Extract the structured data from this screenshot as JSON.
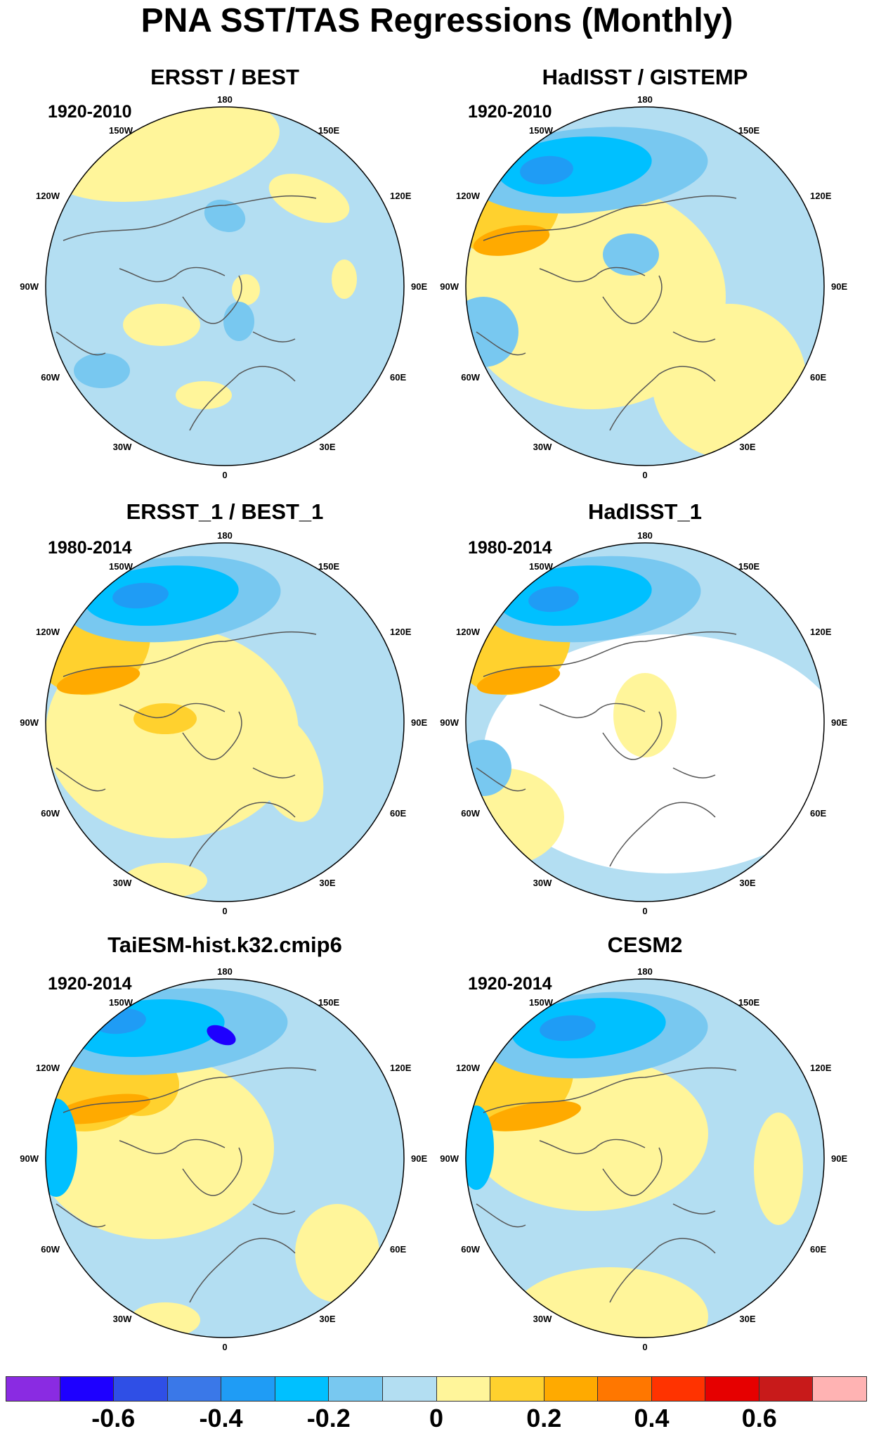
{
  "title": "PNA SST/TAS Regressions (Monthly)",
  "lon_labels": {
    "top": "180",
    "bottom": "0",
    "left_upper": "150W",
    "right_upper": "150E",
    "left_mid_upper": "120W",
    "right_mid_upper": "120E",
    "left_mid": "90W",
    "right_mid": "90E",
    "left_mid_lower": "60W",
    "right_mid_lower": "60E",
    "left_lower": "30W",
    "right_lower": "30E"
  },
  "panels": [
    {
      "title": "ERSST / BEST",
      "years": "1920-2010"
    },
    {
      "title": "HadISST / GISTEMP",
      "years": "1920-2010"
    },
    {
      "title": "ERSST_1 / BEST_1",
      "years": "1980-2014"
    },
    {
      "title": "HadISST_1",
      "years": "1980-2014"
    },
    {
      "title": "TaiESM-hist.k32.cmip6",
      "years": "1920-2014"
    },
    {
      "title": "CESM2",
      "years": "1920-2014"
    }
  ],
  "colorbar": {
    "colors": [
      "#8a2be2",
      "#1e00ff",
      "#2f4fe6",
      "#3a78e8",
      "#1f9cf5",
      "#00c0ff",
      "#78c8f0",
      "#b3def2",
      "#fff59a",
      "#ffd12e",
      "#ffaa00",
      "#ff7700",
      "#ff3300",
      "#e60000",
      "#c81a1a",
      "#ffb3b3"
    ],
    "labels": [
      "-0.6",
      "-0.4",
      "-0.2",
      "0",
      "0.2",
      "0.4",
      "0.6"
    ]
  },
  "palette": {
    "ocean_default": "#b3def2",
    "weak_positive": "#fff59a",
    "positive": "#ffd12e",
    "strong_positive": "#ffaa00",
    "stronger_positive": "#ff7700",
    "weak_negative": "#78c8f0",
    "negative": "#00c0ff",
    "strong_negative": "#1f9cf5",
    "stronger_negative": "#2f4fe6",
    "extreme_negative": "#1e00ff",
    "missing": "#ffffff",
    "coast": "#555555"
  }
}
